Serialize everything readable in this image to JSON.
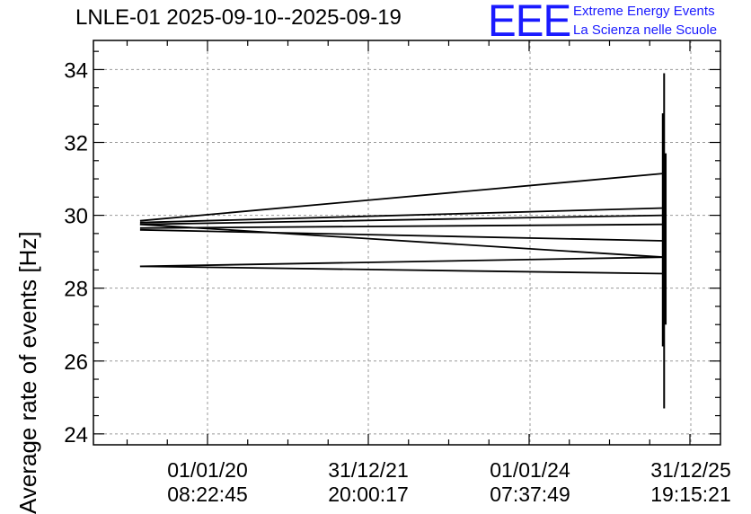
{
  "chart_data": {
    "type": "line",
    "title": "LNLE-01 2025-09-10--2025-09-19",
    "ylabel": "Average rate of events [Hz]",
    "xlabel": "",
    "ylim": [
      23.7,
      34.8
    ],
    "y_ticks": [
      24,
      26,
      28,
      30,
      32,
      34
    ],
    "x_ticks": [
      {
        "date": "01/01/20",
        "time": "08:22:45"
      },
      {
        "date": "31/12/21",
        "time": "20:00:17"
      },
      {
        "date": "01/01/24",
        "time": "07:37:49"
      },
      {
        "date": "31/12/25",
        "time": "19:15:21"
      }
    ],
    "grid": true,
    "series": [
      {
        "color": "#000000",
        "points": [
          [
            "2019-03",
            29.85
          ],
          [
            "2025-09",
            31.15
          ]
        ]
      },
      {
        "color": "#000000",
        "points": [
          [
            "2019-03",
            29.8
          ],
          [
            "2025-09",
            30.2
          ]
        ]
      },
      {
        "color": "#000000",
        "points": [
          [
            "2019-03",
            29.75
          ],
          [
            "2025-09",
            30.0
          ]
        ]
      },
      {
        "color": "#000000",
        "points": [
          [
            "2019-03",
            29.65
          ],
          [
            "2025-09",
            29.75
          ]
        ]
      },
      {
        "color": "#000000",
        "points": [
          [
            "2019-03",
            29.6
          ],
          [
            "2025-09",
            29.3
          ]
        ]
      },
      {
        "color": "#000000",
        "points": [
          [
            "2019-03",
            29.75
          ],
          [
            "2025-09",
            28.85
          ]
        ]
      },
      {
        "color": "#000000",
        "points": [
          [
            "2019-03",
            28.6
          ],
          [
            "2025-09",
            28.85
          ]
        ]
      },
      {
        "color": "#000000",
        "points": [
          [
            "2019-03",
            28.6
          ],
          [
            "2025-09",
            28.4
          ]
        ]
      }
    ],
    "spread": {
      "x": "2025-09",
      "ymin": 24.7,
      "ymax": 33.9
    }
  },
  "logo": {
    "mark": "EEE",
    "line1": "Extreme Energy Events",
    "line2": "La Scienza nelle Scuole",
    "color": "#1a1aff"
  }
}
